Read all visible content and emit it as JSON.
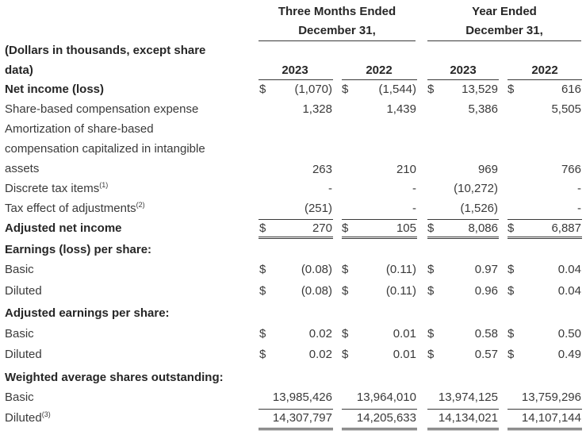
{
  "header": {
    "group1": [
      "Three Months Ended",
      "December 31,"
    ],
    "group2": [
      "Year Ended",
      "December 31,"
    ],
    "label_line1": "(Dollars in thousands, except share",
    "label_line2": "data)",
    "years": [
      "2023",
      "2022",
      "2023",
      "2022"
    ]
  },
  "currency_symbol": "$",
  "rows": [
    {
      "label": "Net income (loss)",
      "bold": true,
      "dollar": true,
      "values": [
        "(1,070)",
        "(1,544)",
        "13,529",
        "616"
      ]
    },
    {
      "label": "Share-based compensation expense",
      "values": [
        "1,328",
        "1,439",
        "5,386",
        "5,505"
      ]
    },
    {
      "label_lines": [
        "Amortization of share-based",
        "compensation capitalized in intangible",
        "assets"
      ],
      "values": [
        "263",
        "210",
        "969",
        "766"
      ]
    },
    {
      "label": "Discrete tax items",
      "footnote": "(1)",
      "values": [
        "-",
        "-",
        "(10,272)",
        "-"
      ]
    },
    {
      "label": "Tax effect of adjustments",
      "footnote": "(2)",
      "values": [
        "(251)",
        "-",
        "(1,526)",
        "-"
      ]
    },
    {
      "label": "Adjusted net income",
      "bold": true,
      "dollar": true,
      "values": [
        "270",
        "105",
        "8,086",
        "6,887"
      ]
    },
    {
      "label": "Earnings (loss) per share:",
      "bold": true
    },
    {
      "label": "Basic",
      "dollar": true,
      "values": [
        "(0.08)",
        "(0.11)",
        "0.97",
        "0.04"
      ]
    },
    {
      "label": "Diluted",
      "dollar": true,
      "values": [
        "(0.08)",
        "(0.11)",
        "0.96",
        "0.04"
      ]
    },
    {
      "label": "Adjusted earnings per share:",
      "bold": true
    },
    {
      "label": "Basic",
      "dollar": true,
      "values": [
        "0.02",
        "0.01",
        "0.58",
        "0.50"
      ]
    },
    {
      "label": "Diluted",
      "dollar": true,
      "values": [
        "0.02",
        "0.01",
        "0.57",
        "0.49"
      ]
    },
    {
      "label": "Weighted average shares outstanding:",
      "bold": true
    },
    {
      "label": "Basic",
      "values": [
        "13,985,426",
        "13,964,010",
        "13,974,125",
        "13,759,296"
      ]
    },
    {
      "label": "Diluted",
      "footnote": "(3)",
      "values": [
        "14,307,797",
        "14,205,633",
        "14,134,021",
        "14,107,144"
      ]
    }
  ]
}
